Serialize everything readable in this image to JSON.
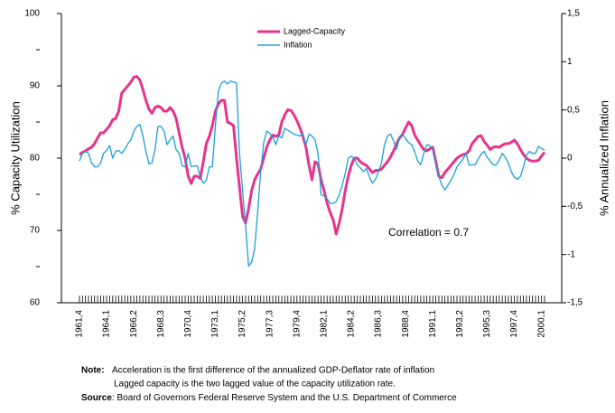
{
  "chart_data": {
    "type": "line",
    "legend": "top",
    "y_axis_label": "% Capacity Utilization",
    "y2_axis_label": "% Annualized Inflation",
    "annotations": [
      "Correlation = 0.7"
    ],
    "ylim": [
      60,
      100
    ],
    "yticks": [
      60,
      70,
      80,
      90,
      100
    ],
    "y2lim": [
      -1.5,
      1.5
    ],
    "y2ticks": [
      {
        "value": -1.5,
        "label": "-1,5"
      },
      -1,
      {
        "value": -0.5,
        "label": "-0,5"
      },
      0,
      {
        "value": 0.5,
        "label": "0,5"
      },
      1,
      {
        "value": 1.5,
        "label": "1,5"
      }
    ],
    "categories": [
      "1961,4",
      null,
      null,
      null,
      null,
      null,
      null,
      null,
      null,
      "1964,1",
      null,
      null,
      null,
      null,
      null,
      null,
      null,
      null,
      "1966,2",
      null,
      null,
      null,
      null,
      null,
      null,
      null,
      null,
      "1968,3",
      null,
      null,
      null,
      null,
      null,
      null,
      null,
      null,
      "1970,4",
      null,
      null,
      null,
      null,
      null,
      null,
      null,
      null,
      "1973,1",
      null,
      null,
      null,
      null,
      null,
      null,
      null,
      null,
      "1975,2",
      null,
      null,
      null,
      null,
      null,
      null,
      null,
      null,
      "1977,3",
      null,
      null,
      null,
      null,
      null,
      null,
      null,
      null,
      "1979,4",
      null,
      null,
      null,
      null,
      null,
      null,
      null,
      null,
      "1982,1",
      null,
      null,
      null,
      null,
      null,
      null,
      null,
      null,
      "1984,2",
      null,
      null,
      null,
      null,
      null,
      null,
      null,
      null,
      "1986,3",
      null,
      null,
      null,
      null,
      null,
      null,
      null,
      null,
      "1988,4",
      null,
      null,
      null,
      null,
      null,
      null,
      null,
      null,
      "1991,1",
      null,
      null,
      null,
      null,
      null,
      null,
      null,
      null,
      "1993,2",
      null,
      null,
      null,
      null,
      null,
      null,
      null,
      null,
      "1995,3",
      null,
      null,
      null,
      null,
      null,
      null,
      null,
      null,
      "1997,4",
      null,
      null,
      null,
      null,
      null,
      null,
      null,
      null,
      "2000,1",
      null
    ],
    "series": [
      {
        "name": "Lagged-Capacity",
        "color": "#e8338b",
        "axis": "y",
        "values": [
          80.5,
          80.8,
          81,
          81.3,
          81.5,
          82,
          82.8,
          83.5,
          83.5,
          84,
          84.5,
          85.3,
          85.5,
          86.5,
          89,
          89.5,
          90,
          90.5,
          91.2,
          91.3,
          90.8,
          89.5,
          88,
          86.8,
          86.2,
          87,
          87.2,
          87,
          86.5,
          86.5,
          87,
          86.5,
          85.5,
          83.5,
          81.5,
          80,
          77.5,
          76.5,
          77.5,
          77.5,
          77.2,
          79.5,
          82,
          83,
          84.5,
          86.5,
          87.5,
          88,
          88,
          85,
          84.8,
          84.5,
          80,
          76,
          72,
          71,
          73,
          75.5,
          77,
          77.8,
          78.5,
          80,
          81.5,
          82.5,
          83.2,
          83,
          83.2,
          85,
          86,
          86.7,
          86.6,
          86,
          85.2,
          84.2,
          83,
          81.5,
          79,
          77,
          79.5,
          79.2,
          77,
          75.5,
          73.8,
          72.5,
          71.5,
          69.5,
          71,
          73,
          75.5,
          77.5,
          79,
          80,
          80,
          79.5,
          79.2,
          79,
          78.5,
          78,
          78.3,
          78.3,
          78.5,
          79,
          79.5,
          80.2,
          81,
          82,
          82.8,
          83.3,
          84.2,
          85,
          84.5,
          83.2,
          82.5,
          81.8,
          81.2,
          81,
          81.3,
          81.5,
          79.5,
          77.5,
          77.3,
          78,
          78.5,
          79,
          79.5,
          80,
          80.3,
          80.5,
          80.6,
          81,
          82,
          82.5,
          83,
          83.1,
          82.3,
          81.8,
          81.2,
          81.5,
          81.6,
          81.5,
          81.8,
          82,
          82,
          82.2,
          82.5,
          82,
          81.2,
          80.5,
          80,
          79.7,
          79.6,
          79.6,
          79.7,
          80.3,
          80.8
        ]
      },
      {
        "name": "Inflation",
        "color": "#1aa0d8",
        "axis": "y2",
        "values": [
          -0.03,
          0.05,
          0.07,
          0.05,
          -0.05,
          -0.09,
          -0.09,
          -0.05,
          0.05,
          0.08,
          0.13,
          0,
          0.07,
          0.08,
          0.05,
          0.09,
          0.15,
          0.19,
          0.28,
          0.33,
          0.35,
          0.23,
          0.07,
          -0.06,
          -0.05,
          0.09,
          0.33,
          0.33,
          0.28,
          0.14,
          0.19,
          0.23,
          0.09,
          0.05,
          -0.08,
          -0.09,
          0.05,
          -0.09,
          -0.08,
          -0.08,
          -0.19,
          -0.26,
          -0.23,
          -0.09,
          -0.09,
          0.33,
          0.7,
          0.78,
          0.8,
          0.77,
          0.8,
          0.79,
          0.78,
          0.05,
          -0.33,
          -0.7,
          -1.12,
          -1.08,
          -0.94,
          -0.56,
          -0.14,
          0.16,
          0.28,
          0.26,
          0.22,
          0.14,
          0.23,
          0.21,
          0.31,
          0.29,
          0.27,
          0.25,
          0.24,
          0.23,
          0.25,
          0.14,
          0.25,
          0.23,
          0.19,
          0.05,
          -0.38,
          -0.39,
          -0.42,
          -0.47,
          -0.47,
          -0.45,
          -0.38,
          -0.28,
          -0.16,
          0,
          0.02,
          0,
          -0.07,
          -0.1,
          -0.14,
          -0.11,
          -0.19,
          -0.26,
          -0.22,
          -0.14,
          -0.05,
          0.14,
          0.23,
          0.25,
          0.18,
          0.09,
          0.22,
          0.25,
          0.2,
          0.16,
          0.14,
          0.07,
          -0.03,
          -0.07,
          0.05,
          0.14,
          0.13,
          0.09,
          -0.07,
          -0.19,
          -0.28,
          -0.33,
          -0.28,
          -0.23,
          -0.17,
          -0.09,
          -0.05,
          -0.01,
          0.05,
          -0.07,
          -0.07,
          -0.07,
          -0.01,
          0.04,
          0.07,
          0.01,
          -0.03,
          -0.07,
          -0.07,
          -0.02,
          0.05,
          0.01,
          -0.05,
          -0.14,
          -0.2,
          -0.22,
          -0.19,
          -0.09,
          0.03,
          0.07,
          0.05,
          0.05,
          0.12,
          0.1,
          0.08
        ]
      }
    ]
  },
  "notes": {
    "note_label": "Note:",
    "note_lines": [
      "Acceleration is the first difference of the annualized GDP-Deflator rate of inflation",
      "Lagged capacity is the two lagged value of the capacity utilization rate."
    ],
    "source_label": "Source",
    "source_text": ":  Board of Governors Federal Reserve System  and the U.S. Department of  Commerce"
  }
}
